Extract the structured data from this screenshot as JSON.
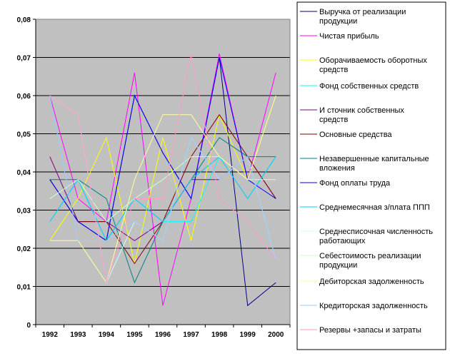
{
  "chart_data": {
    "type": "line",
    "title": "",
    "xlabel": "",
    "ylabel": "",
    "x": [
      "1992",
      "1993",
      "1994",
      "1995",
      "1996",
      "1997",
      "1998",
      "1999",
      "2000"
    ],
    "ylim": [
      0,
      0.08
    ],
    "yticks": [
      "0",
      "0,01",
      "0,02",
      "0,03",
      "0,04",
      "0,05",
      "0,06",
      "0,07",
      "0,08"
    ],
    "grid": "horizontal",
    "background": "#c0c0c0",
    "legend_position": "right",
    "series": [
      {
        "name": "Выручка от реализации продукции",
        "color": "#000080",
        "values": [
          0.038,
          0.027,
          0.022,
          0.06,
          0.045,
          0.033,
          0.07,
          0.005,
          0.011
        ]
      },
      {
        "name": "Чистая прибыль",
        "color": "#ff00ff",
        "values": [
          0.06,
          0.033,
          0.027,
          0.066,
          0.005,
          0.033,
          0.071,
          0.038,
          0.066
        ]
      },
      {
        "name": "Оборачиваемость оборотных средств",
        "color": "#ffff00",
        "values": [
          0.022,
          0.033,
          0.049,
          0.016,
          0.049,
          0.022,
          0.055,
          0.038,
          0.06
        ]
      },
      {
        "name": "Фонд собственных средств",
        "color": "#00ffff",
        "values": [
          0.027,
          0.038,
          0.022,
          0.033,
          0.027,
          0.027,
          0.044,
          0.033,
          0.044
        ]
      },
      {
        "name": "И сточник собственных средств",
        "color": "#800080",
        "values": [
          0.044,
          0.027,
          0.027,
          0.022,
          0.027,
          0.038,
          0.038,
          0.044,
          0.033
        ]
      },
      {
        "name": "Основные средства",
        "color": "#800000",
        "values": [
          0.038,
          0.027,
          0.027,
          0.016,
          0.027,
          0.044,
          0.055,
          0.044,
          0.033
        ]
      },
      {
        "name": "Незавершенные капитальные вложения",
        "color": "#008080",
        "values": [
          0.038,
          0.038,
          0.033,
          0.011,
          0.027,
          0.038,
          0.049,
          0.044,
          0.044
        ]
      },
      {
        "name": "Фонд оплаты труда",
        "color": "#0000ff",
        "values": [
          0.038,
          0.027,
          0.022,
          0.06,
          0.045,
          0.033,
          0.07,
          0.038,
          0.033
        ]
      },
      {
        "name": "Среднемесячная з/плата ППП",
        "color": "#00ccff",
        "values": [
          0.027,
          0.038,
          0.022,
          0.033,
          0.027,
          0.038,
          0.044,
          0.033,
          0.044
        ]
      },
      {
        "name": "Среднесписочная численность работающих",
        "color": "#ccffff",
        "values": [
          0.06,
          0.055,
          0.011,
          0.027,
          0.022,
          0.049,
          0.038,
          0.044,
          0.017
        ]
      },
      {
        "name": "Себестоимость реализации продукции",
        "color": "#ccffcc",
        "values": [
          0.033,
          0.038,
          0.027,
          0.033,
          0.038,
          0.044,
          0.044,
          0.038,
          0.038
        ]
      },
      {
        "name": "Дебиторская задолженность",
        "color": "#ffff99",
        "values": [
          0.022,
          0.022,
          0.011,
          0.038,
          0.055,
          0.055,
          0.044,
          0.038,
          0.06
        ]
      },
      {
        "name": "Кредиторская задолженность",
        "color": "#99ccff",
        "values": [
          0.06,
          0.022,
          0.022,
          0.027,
          0.022,
          0.049,
          0.038,
          0.044,
          0.017
        ]
      },
      {
        "name": "Резервы +запасы и затраты",
        "color": "#ff99cc",
        "values": [
          0.06,
          0.055,
          0.011,
          0.033,
          0.033,
          0.071,
          0.033,
          0.027,
          0.017
        ]
      }
    ]
  }
}
